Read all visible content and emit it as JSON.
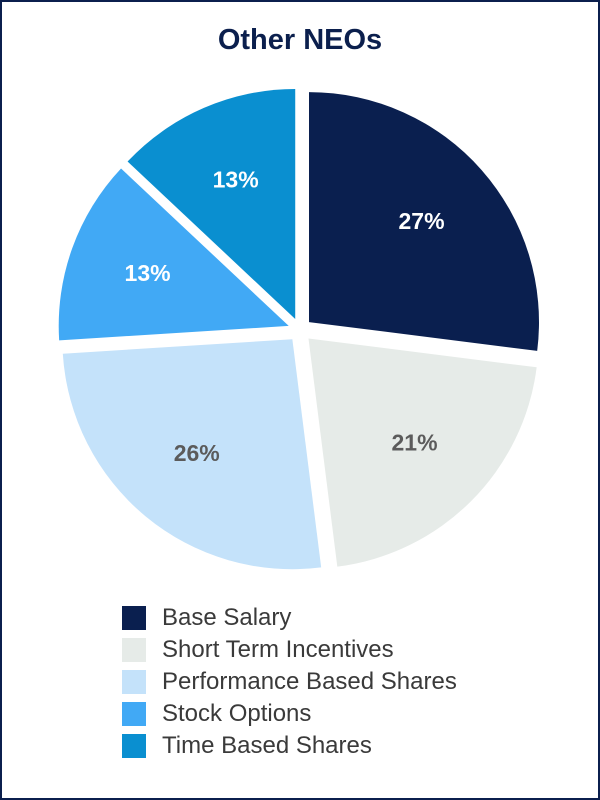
{
  "chart_data": {
    "type": "pie",
    "title": "Other NEOs",
    "slices": [
      {
        "label": "Base Salary",
        "value": 27,
        "display": "27%",
        "color": "#0a1f4f",
        "label_color": "#ffffff"
      },
      {
        "label": "Short Term Incentives",
        "value": 21,
        "display": "21%",
        "color": "#e6ebe8",
        "label_color": "#5b5b5b"
      },
      {
        "label": "Performance Based Shares",
        "value": 26,
        "display": "26%",
        "color": "#c4e2fa",
        "label_color": "#5b5b5b"
      },
      {
        "label": "Stock Options",
        "value": 13,
        "display": "13%",
        "color": "#41a9f5",
        "label_color": "#ffffff"
      },
      {
        "label": "Time Based Shares",
        "value": 13,
        "display": "13%",
        "color": "#0a8fd0",
        "label_color": "#ffffff"
      }
    ]
  }
}
